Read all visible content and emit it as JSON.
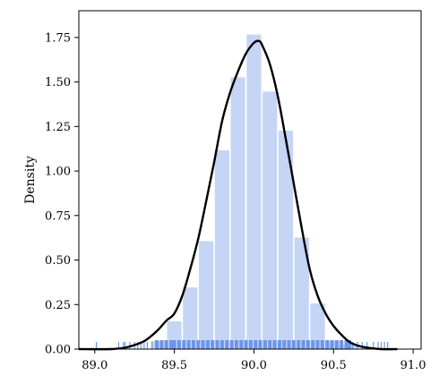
{
  "chart_data": {
    "type": "histogram",
    "title": "",
    "xlabel": "",
    "ylabel": "Density",
    "xlim": [
      88.9,
      91.05
    ],
    "ylim": [
      0,
      1.9
    ],
    "xticks": [
      89.0,
      89.5,
      90.0,
      90.5,
      91.0
    ],
    "xtick_labels": [
      "89.0",
      "89.5",
      "90.0",
      "90.5",
      "91.0"
    ],
    "yticks": [
      0.0,
      0.25,
      0.5,
      0.75,
      1.0,
      1.25,
      1.5,
      1.75
    ],
    "ytick_labels": [
      "0.00",
      "0.25",
      "0.50",
      "0.75",
      "1.00",
      "1.25",
      "1.50",
      "1.75"
    ],
    "grid": false,
    "legend": false,
    "histogram": {
      "bin_edges": [
        89.35,
        89.45,
        89.55,
        89.65,
        89.75,
        89.85,
        89.95,
        90.05,
        90.15,
        90.25,
        90.35,
        90.45,
        90.55,
        90.65
      ],
      "density": [
        0.05,
        0.16,
        0.35,
        0.61,
        1.12,
        1.53,
        1.77,
        1.45,
        1.23,
        0.63,
        0.26,
        0.05,
        0.03
      ],
      "color": "#c5d5f5"
    },
    "kde": {
      "x": [
        88.9,
        89.1,
        89.2,
        89.3,
        89.35,
        89.4,
        89.45,
        89.5,
        89.55,
        89.6,
        89.65,
        89.7,
        89.75,
        89.8,
        89.85,
        89.9,
        89.95,
        90.0,
        90.03,
        90.05,
        90.1,
        90.15,
        90.2,
        90.25,
        90.3,
        90.35,
        90.4,
        90.45,
        90.5,
        90.55,
        90.6,
        90.65,
        90.7,
        90.8,
        90.9
      ],
      "y": [
        0.0,
        0.0,
        0.01,
        0.04,
        0.07,
        0.11,
        0.16,
        0.2,
        0.3,
        0.45,
        0.62,
        0.83,
        1.05,
        1.28,
        1.44,
        1.56,
        1.66,
        1.72,
        1.73,
        1.71,
        1.6,
        1.42,
        1.18,
        0.93,
        0.68,
        0.45,
        0.3,
        0.2,
        0.13,
        0.08,
        0.04,
        0.02,
        0.01,
        0.0,
        0.0
      ],
      "color": "#000000"
    },
    "rug": {
      "x": [
        89.01,
        89.15,
        89.18,
        89.19,
        89.22,
        89.25,
        89.27,
        89.29,
        89.31,
        89.33,
        89.36,
        89.39,
        89.42,
        89.45,
        89.48,
        89.5,
        89.53,
        89.56,
        89.59,
        89.62,
        89.65,
        89.68,
        89.71,
        89.74,
        89.77,
        89.8,
        89.83,
        89.86,
        89.89,
        89.92,
        89.95,
        89.98,
        90.01,
        90.04,
        90.07,
        90.1,
        90.13,
        90.16,
        90.19,
        90.22,
        90.25,
        90.28,
        90.31,
        90.34,
        90.37,
        90.4,
        90.43,
        90.46,
        90.49,
        90.52,
        90.55,
        90.58,
        90.6,
        90.62,
        90.65,
        90.68,
        90.71,
        90.75,
        90.78,
        90.8,
        90.82,
        90.84
      ],
      "color": "#6d95e8"
    }
  }
}
